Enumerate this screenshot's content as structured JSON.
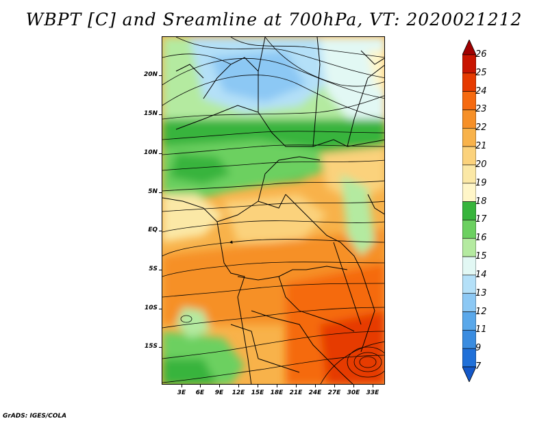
{
  "title": "WBPT [C] and Sreamline at 700hPa, VT: 2020021212",
  "credit": "GrADS: IGES/COLA",
  "map": {
    "lat_labels": [
      "20N",
      "15N",
      "10N",
      "5N",
      "EQ",
      "5S",
      "10S",
      "15S"
    ],
    "lon_labels": [
      "3E",
      "6E",
      "9E",
      "12E",
      "15E",
      "18E",
      "21E",
      "24E",
      "27E",
      "30E",
      "33E"
    ],
    "lat_range": [
      -19,
      24
    ],
    "lon_range": [
      0,
      35
    ]
  },
  "colorbar": {
    "labels": [
      "26",
      "25",
      "24",
      "23",
      "22",
      "21",
      "20",
      "19",
      "18",
      "17",
      "16",
      "15",
      "14",
      "13",
      "12",
      "11",
      "9",
      "7"
    ],
    "colors": [
      "#a00000",
      "#c81400",
      "#e63a00",
      "#f56a10",
      "#f69028",
      "#f8b24a",
      "#fbd27c",
      "#fbe8a6",
      "#fff6c8",
      "#37b43c",
      "#6cd060",
      "#b4eaa0",
      "#e2f8f4",
      "#b4e0f8",
      "#8cc8f4",
      "#5aa8ea",
      "#3a8ce0",
      "#2070d8",
      "#1458c8"
    ]
  }
}
